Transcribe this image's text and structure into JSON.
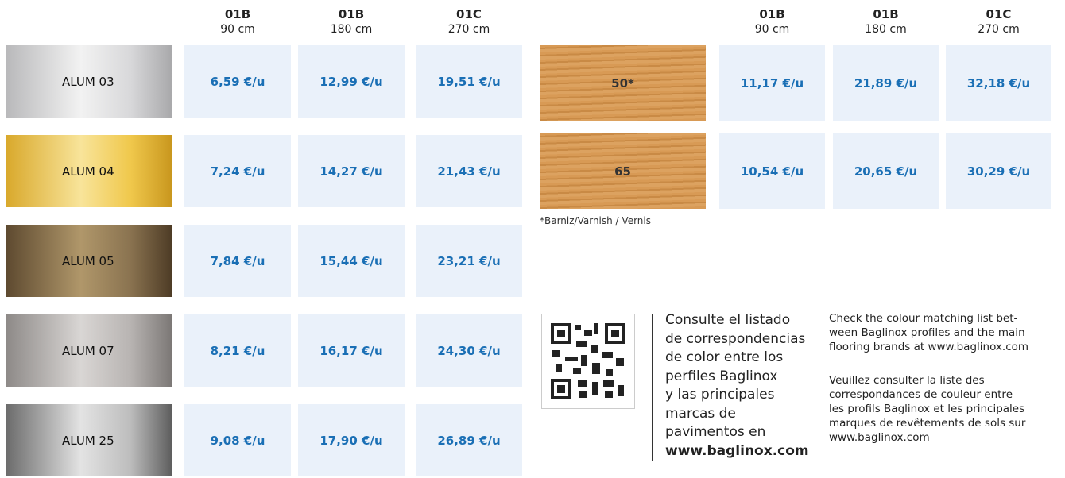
{
  "left_table": {
    "headers": [
      {
        "code": "01B",
        "size": "90 cm"
      },
      {
        "code": "01B",
        "size": "180 cm"
      },
      {
        "code": "01C",
        "size": "270 cm"
      }
    ],
    "rows": [
      {
        "name": "ALUM 03",
        "prices": [
          "6,59 €/u",
          "12,99 €/u",
          "19,51 €/u"
        ]
      },
      {
        "name": "ALUM 04",
        "prices": [
          "7,24 €/u",
          "14,27 €/u",
          "21,43 €/u"
        ]
      },
      {
        "name": "ALUM 05",
        "prices": [
          "7,84 €/u",
          "15,44 €/u",
          "23,21 €/u"
        ]
      },
      {
        "name": "ALUM 07",
        "prices": [
          "8,21 €/u",
          "16,17 €/u",
          "24,30 €/u"
        ]
      },
      {
        "name": "ALUM 25",
        "prices": [
          "9,08 €/u",
          "17,90 €/u",
          "26,89 €/u"
        ]
      }
    ]
  },
  "right_table": {
    "headers": [
      {
        "code": "01B",
        "size": "90 cm"
      },
      {
        "code": "01B",
        "size": "180 cm"
      },
      {
        "code": "01C",
        "size": "270 cm"
      }
    ],
    "rows": [
      {
        "name": "50*",
        "prices": [
          "11,17 €/u",
          "21,89 €/u",
          "32,18 €/u"
        ]
      },
      {
        "name": "65",
        "prices": [
          "10,54 €/u",
          "20,65 €/u",
          "30,29 €/u"
        ]
      }
    ]
  },
  "footnote": "*Barniz/Varnish / Vernis",
  "info": {
    "spanish": {
      "lines": [
        "Consulte el listado",
        "de correspondencias",
        "de color entre los",
        "perfiles Baglinox",
        "y las principales",
        "marcas de",
        "pavimentos en"
      ],
      "link": "www.baglinox.com"
    },
    "english": {
      "lines": [
        "Check the colour matching list bet-",
        "ween Baglinox profiles and the main",
        "flooring brands at www.baglinox.com"
      ]
    },
    "french": {
      "lines": [
        "Veuillez consulter la liste des",
        "correspondances de couleur entre",
        "les profils Baglinox et les principales",
        "marques de revêtements de sols sur",
        "www.baglinox.com"
      ]
    }
  }
}
